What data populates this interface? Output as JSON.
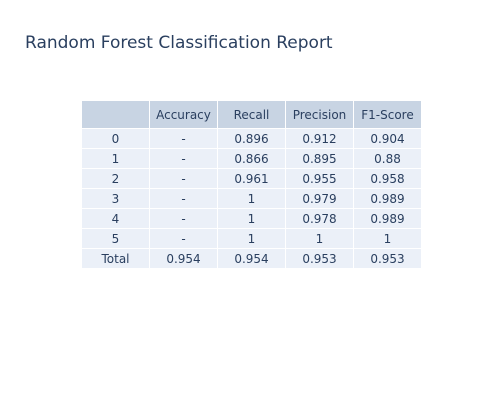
{
  "chart_data": {
    "type": "table",
    "title": "Random Forest Classification Report",
    "columns": [
      "",
      "Accuracy",
      "Recall",
      "Precision",
      "F1-Score"
    ],
    "rows": [
      {
        "label": "0",
        "accuracy": "-",
        "recall": "0.896",
        "precision": "0.912",
        "f1": "0.904"
      },
      {
        "label": "1",
        "accuracy": "-",
        "recall": "0.866",
        "precision": "0.895",
        "f1": "0.88"
      },
      {
        "label": "2",
        "accuracy": "-",
        "recall": "0.961",
        "precision": "0.955",
        "f1": "0.958"
      },
      {
        "label": "3",
        "accuracy": "-",
        "recall": "1",
        "precision": "0.979",
        "f1": "0.989"
      },
      {
        "label": "4",
        "accuracy": "-",
        "recall": "1",
        "precision": "0.978",
        "f1": "0.989"
      },
      {
        "label": "5",
        "accuracy": "-",
        "recall": "1",
        "precision": "1",
        "f1": "1"
      },
      {
        "label": "Total",
        "accuracy": "0.954",
        "recall": "0.954",
        "precision": "0.953",
        "f1": "0.953"
      }
    ],
    "header_color": "#c8d4e3",
    "cell_color": "#ebf0f8",
    "text_color": "#2a3f5f"
  }
}
